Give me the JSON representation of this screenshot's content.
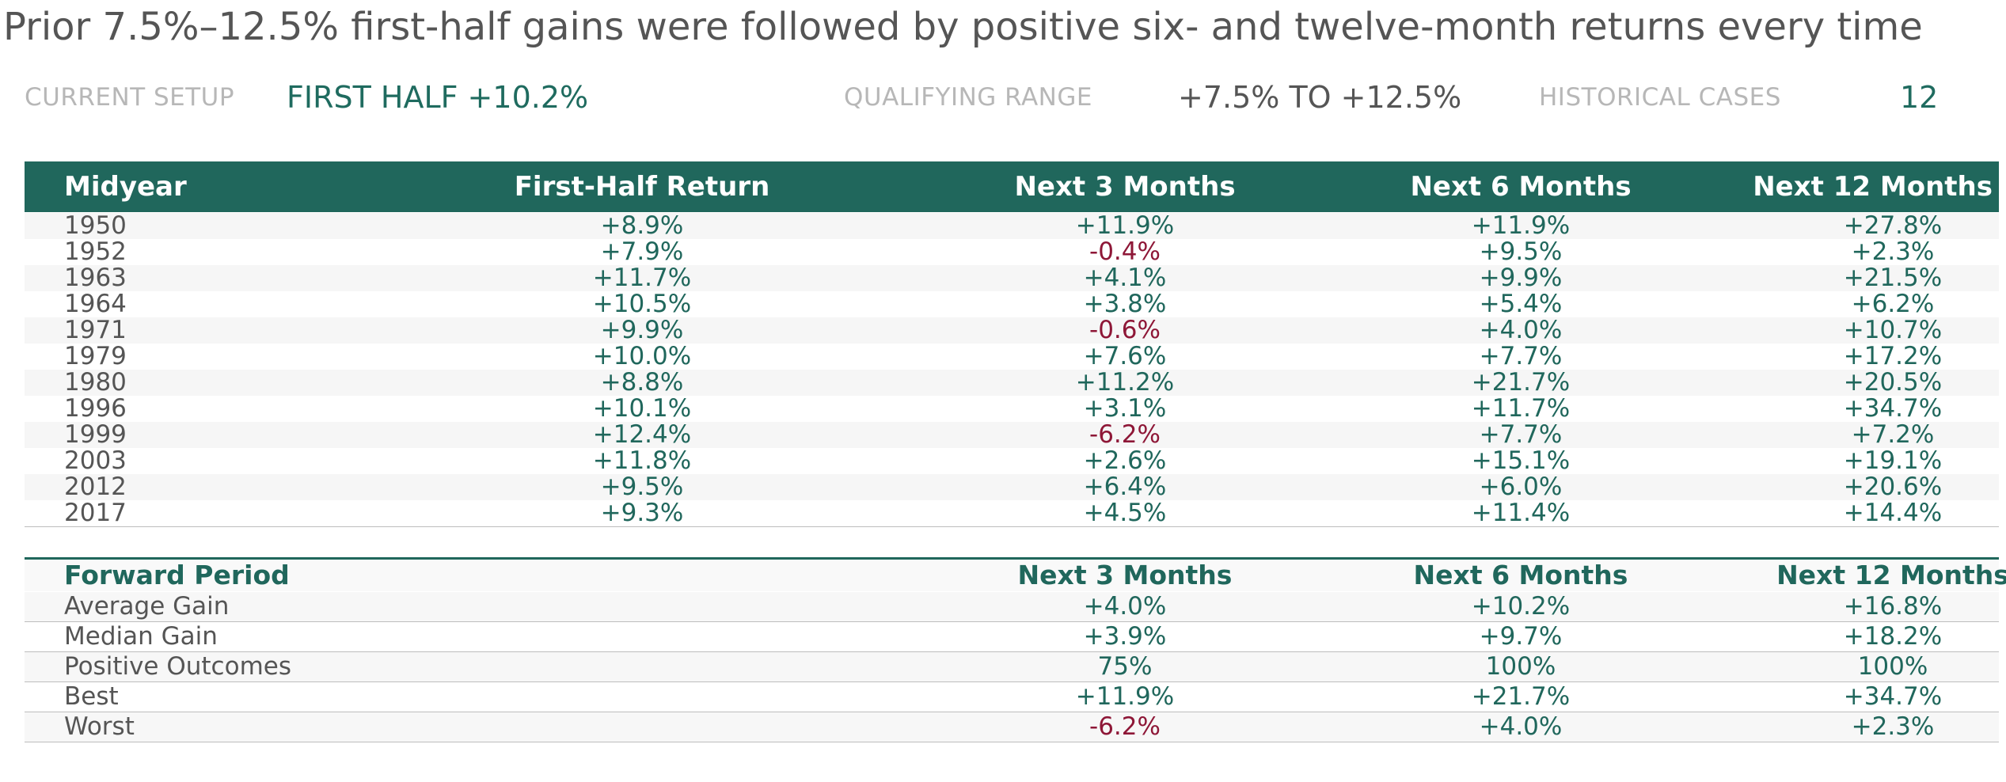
{
  "title": "Prior 7.5%–12.5% first-half gains were followed by positive six- and twelve-month returns every time",
  "setup": {
    "current_label": "CURRENT SETUP",
    "current_value": "FIRST HALF +10.2%",
    "range_label": "QUALIFYING RANGE",
    "range_value": "+7.5% TO +12.5%",
    "cases_label": "HISTORICAL CASES",
    "cases_value": "12"
  },
  "colors": {
    "header_bg": "#20675c",
    "positive": "#20675c",
    "negative": "#8e1737",
    "label": "#b7b7b7"
  },
  "chart_data": {
    "type": "table",
    "columns": [
      "Midyear",
      "First-Half Return",
      "Next 3 Months",
      "Next 6 Months",
      "Next 12 Months"
    ],
    "rows": [
      [
        "1950",
        "+8.9%",
        "+11.9%",
        "+11.9%",
        "+27.8%"
      ],
      [
        "1952",
        "+7.9%",
        "-0.4%",
        "+9.5%",
        "+2.3%"
      ],
      [
        "1963",
        "+11.7%",
        "+4.1%",
        "+9.9%",
        "+21.5%"
      ],
      [
        "1964",
        "+10.5%",
        "+3.8%",
        "+5.4%",
        "+6.2%"
      ],
      [
        "1971",
        "+9.9%",
        "-0.6%",
        "+4.0%",
        "+10.7%"
      ],
      [
        "1979",
        "+10.0%",
        "+7.6%",
        "+7.7%",
        "+17.2%"
      ],
      [
        "1980",
        "+8.8%",
        "+11.2%",
        "+21.7%",
        "+20.5%"
      ],
      [
        "1996",
        "+10.1%",
        "+3.1%",
        "+11.7%",
        "+34.7%"
      ],
      [
        "1999",
        "+12.4%",
        "-6.2%",
        "+7.7%",
        "+7.2%"
      ],
      [
        "2003",
        "+11.8%",
        "+2.6%",
        "+15.1%",
        "+19.1%"
      ],
      [
        "2012",
        "+9.5%",
        "+6.4%",
        "+6.0%",
        "+20.6%"
      ],
      [
        "2017",
        "+9.3%",
        "+4.5%",
        "+11.4%",
        "+14.4%"
      ]
    ],
    "summary_columns": [
      "Forward Period",
      "Next 3 Months",
      "Next 6 Months",
      "Next 12 Months"
    ],
    "summary_rows": [
      [
        "Average Gain",
        "+4.0%",
        "+10.2%",
        "+16.8%"
      ],
      [
        "Median Gain",
        "+3.9%",
        "+9.7%",
        "+18.2%"
      ],
      [
        "Positive Outcomes",
        "75%",
        "100%",
        "100%"
      ],
      [
        "Best",
        "+11.9%",
        "+21.7%",
        "+34.7%"
      ],
      [
        "Worst",
        "-6.2%",
        "+4.0%",
        "+2.3%"
      ]
    ]
  }
}
